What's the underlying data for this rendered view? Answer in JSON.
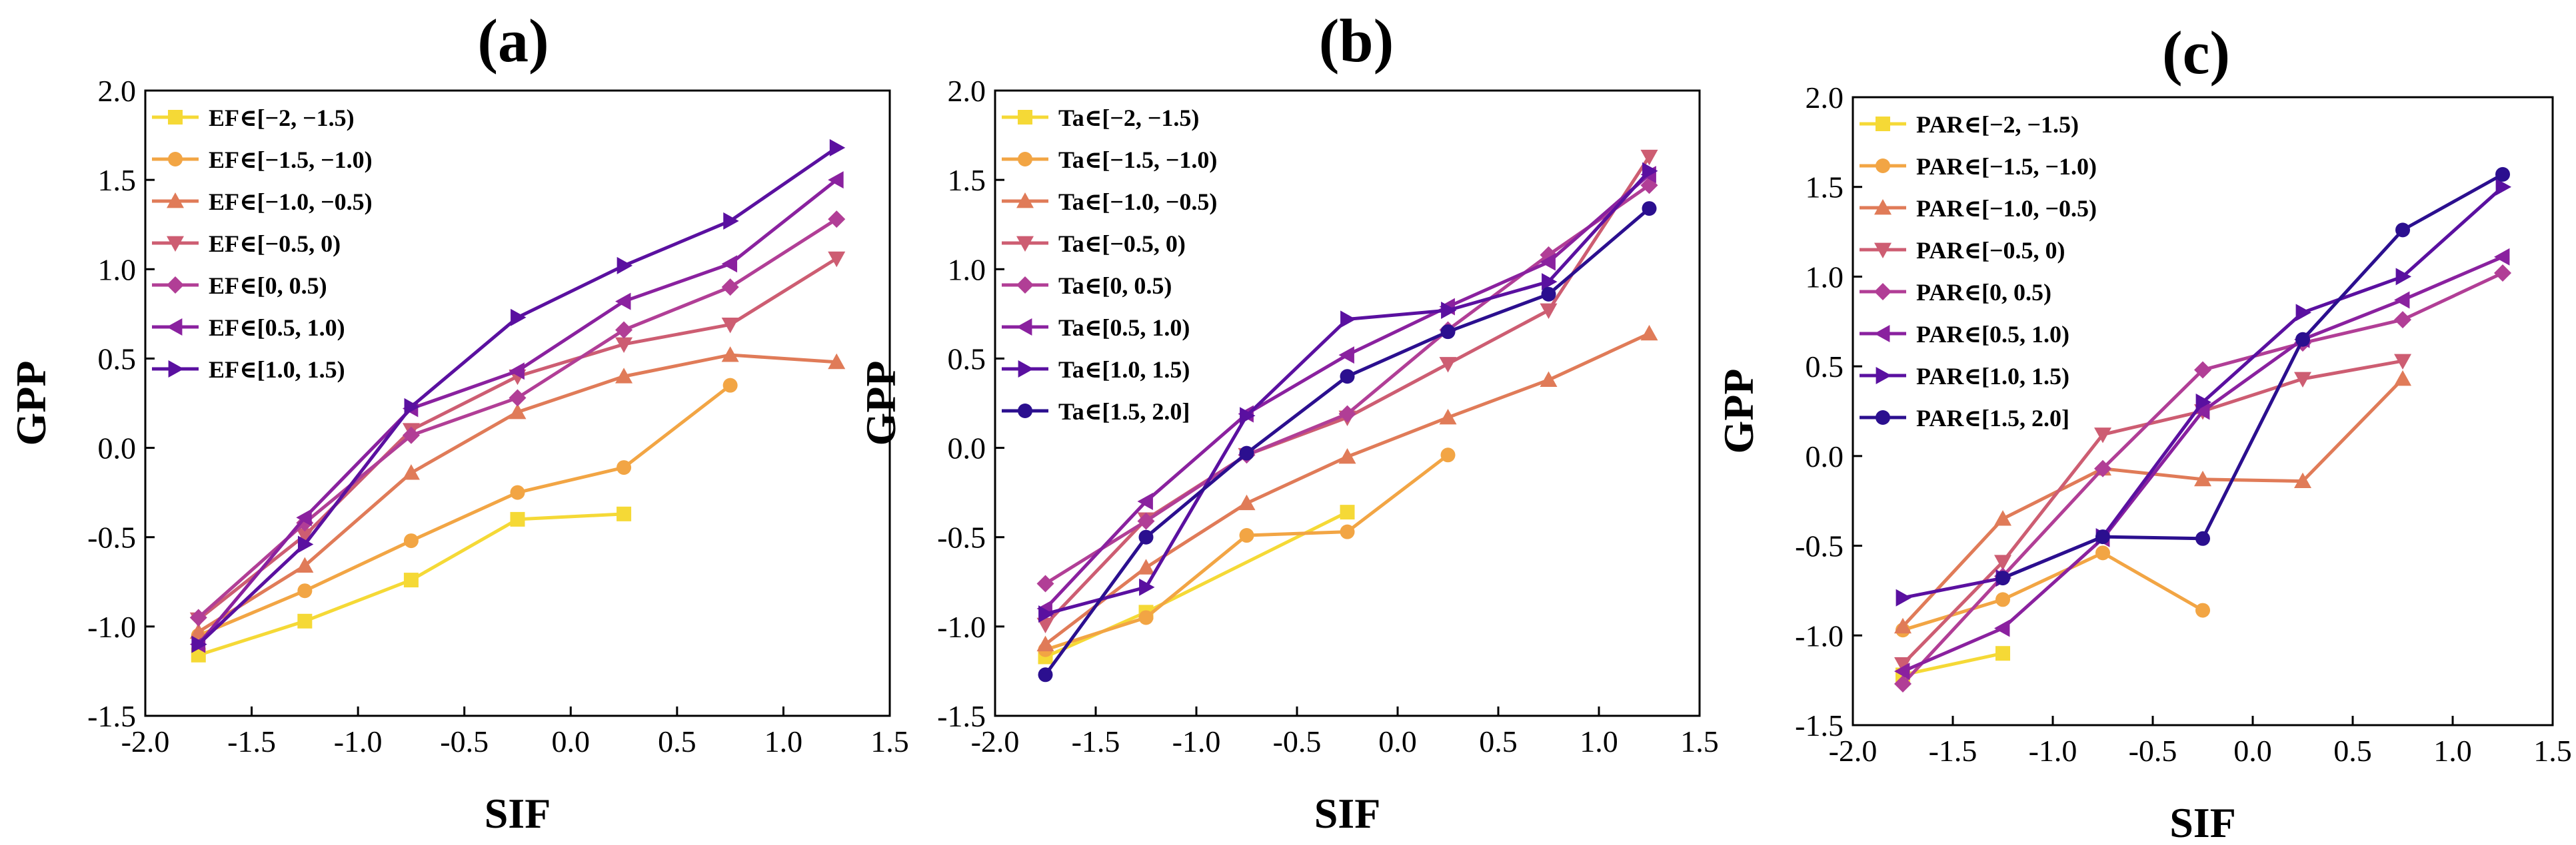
{
  "colors": {
    "s1": "#F5D936",
    "s2": "#F2A544",
    "s3": "#E07B58",
    "s4": "#CD5D72",
    "s5": "#B13E96",
    "s6": "#8A219F",
    "s7": "#5A10A0",
    "s8": "#2B0F8F"
  },
  "chart_data": [
    {
      "type": "line",
      "panel_label": "(a)",
      "xlabel": "SIF",
      "ylabel": "GPP",
      "xlim": [
        -2.0,
        1.5
      ],
      "ylim": [
        -1.5,
        2.0
      ],
      "xticks": [
        "-2.0",
        "-1.5",
        "-1.0",
        "-0.5",
        "0.0",
        "0.5",
        "1.0",
        "1.5"
      ],
      "yticks": [
        "-1.5",
        "-1.0",
        "-0.5",
        "0.0",
        "0.5",
        "1.0",
        "1.5",
        "2.0"
      ],
      "x": [
        -1.75,
        -1.25,
        -0.75,
        -0.25,
        0.25,
        0.75,
        1.25
      ],
      "legend_position": "top-left",
      "series": [
        {
          "name": "EF∈[−2, −1.5)",
          "color": "s1",
          "marker": "square",
          "values": [
            -1.16,
            -0.97,
            -0.74,
            -0.4,
            -0.37,
            null,
            null
          ]
        },
        {
          "name": "EF∈[−1.5, −1.0)",
          "color": "s2",
          "marker": "circle",
          "values": [
            -1.05,
            -0.8,
            -0.52,
            -0.25,
            -0.11,
            0.35,
            null
          ]
        },
        {
          "name": "EF∈[−1.0, −0.5)",
          "color": "s3",
          "marker": "triangle-up",
          "values": [
            -1.03,
            -0.66,
            -0.14,
            0.2,
            0.4,
            0.52,
            0.48
          ]
        },
        {
          "name": "EF∈[−0.5, 0)",
          "color": "s4",
          "marker": "triangle-down",
          "values": [
            -0.96,
            -0.49,
            0.1,
            0.4,
            0.58,
            0.69,
            1.06
          ]
        },
        {
          "name": "EF∈[0, 0.5)",
          "color": "s5",
          "marker": "diamond",
          "values": [
            -0.95,
            -0.42,
            0.07,
            0.28,
            0.66,
            0.9,
            1.28
          ]
        },
        {
          "name": "EF∈[0.5, 1.0)",
          "color": "s6",
          "marker": "triangle-left",
          "values": [
            -1.1,
            -0.39,
            0.22,
            0.43,
            0.82,
            1.03,
            1.5
          ]
        },
        {
          "name": "EF∈[1.0, 1.5)",
          "color": "s7",
          "marker": "triangle-right",
          "values": [
            -1.1,
            -0.54,
            0.23,
            0.73,
            1.02,
            1.27,
            1.68
          ]
        }
      ]
    },
    {
      "type": "line",
      "panel_label": "(b)",
      "xlabel": "SIF",
      "ylabel": "GPP",
      "xlim": [
        -2.0,
        1.5
      ],
      "ylim": [
        -1.5,
        2.0
      ],
      "xticks": [
        "-2.0",
        "-1.5",
        "-1.0",
        "-0.5",
        "0.0",
        "0.5",
        "1.0",
        "1.5"
      ],
      "yticks": [
        "-1.5",
        "-1.0",
        "-0.5",
        "0.0",
        "0.5",
        "1.0",
        "1.5",
        "2.0"
      ],
      "x": [
        -1.75,
        -1.25,
        -0.75,
        -0.25,
        0.25,
        0.75,
        1.25
      ],
      "legend_position": "top-left",
      "series": [
        {
          "name": "Ta∈[−2, −1.5)",
          "color": "s1",
          "marker": "square",
          "values": [
            -1.17,
            -0.92,
            null,
            -0.36,
            null,
            null,
            null
          ]
        },
        {
          "name": "Ta∈[−1.5, −1.0)",
          "color": "s2",
          "marker": "circle",
          "values": [
            -1.13,
            -0.95,
            -0.49,
            -0.47,
            -0.04,
            null,
            null
          ]
        },
        {
          "name": "Ta∈[−1.0, −0.5)",
          "color": "s3",
          "marker": "triangle-up",
          "values": [
            -1.1,
            -0.67,
            -0.31,
            -0.05,
            0.17,
            0.38,
            0.64
          ]
        },
        {
          "name": "Ta∈[−0.5, 0)",
          "color": "s4",
          "marker": "triangle-down",
          "values": [
            -0.99,
            -0.4,
            -0.04,
            0.17,
            0.47,
            0.77,
            1.63
          ]
        },
        {
          "name": "Ta∈[0, 0.5)",
          "color": "s5",
          "marker": "diamond",
          "values": [
            -0.76,
            -0.41,
            -0.04,
            0.19,
            0.66,
            1.08,
            1.47
          ]
        },
        {
          "name": "Ta∈[0.5, 1.0)",
          "color": "s6",
          "marker": "triangle-left",
          "values": [
            -0.9,
            -0.3,
            0.19,
            0.52,
            0.79,
            1.04,
            1.53
          ]
        },
        {
          "name": "Ta∈[1.0, 1.5)",
          "color": "s7",
          "marker": "triangle-right",
          "values": [
            -0.93,
            -0.78,
            0.18,
            0.72,
            0.77,
            0.93,
            1.55
          ]
        },
        {
          "name": "Ta∈[1.5, 2.0]",
          "color": "s8",
          "marker": "circle",
          "values": [
            -1.27,
            -0.5,
            -0.03,
            0.4,
            0.65,
            0.86,
            1.34
          ]
        }
      ]
    },
    {
      "type": "line",
      "panel_label": "(c)",
      "xlabel": "SIF",
      "ylabel": "GPP",
      "xlim": [
        -2.0,
        1.5
      ],
      "ylim": [
        -1.5,
        2.0
      ],
      "xticks": [
        "-2.0",
        "-1.5",
        "-1.0",
        "-0.5",
        "0.0",
        "0.5",
        "1.0",
        "1.5"
      ],
      "yticks": [
        "-1.5",
        "-1.0",
        "-0.5",
        "0.0",
        "0.5",
        "1.0",
        "1.5",
        "2.0"
      ],
      "x": [
        -1.75,
        -1.25,
        -0.75,
        -0.25,
        0.25,
        0.75,
        1.25
      ],
      "legend_position": "top-left",
      "series": [
        {
          "name": "PAR∈[−2, −1.5)",
          "color": "s1",
          "marker": "square",
          "values": [
            -1.22,
            -1.1,
            null,
            null,
            null,
            null,
            null
          ]
        },
        {
          "name": "PAR∈[−1.5, −1.0)",
          "color": "s2",
          "marker": "circle",
          "values": [
            -0.97,
            -0.8,
            -0.54,
            -0.86,
            null,
            null,
            null
          ]
        },
        {
          "name": "PAR∈[−1.0, −0.5)",
          "color": "s3",
          "marker": "triangle-up",
          "values": [
            -0.95,
            -0.35,
            -0.07,
            -0.13,
            -0.14,
            0.43,
            null
          ]
        },
        {
          "name": "PAR∈[−0.5, 0)",
          "color": "s4",
          "marker": "triangle-down",
          "values": [
            -1.16,
            -0.59,
            0.12,
            0.25,
            0.43,
            0.53,
            null
          ]
        },
        {
          "name": "PAR∈[0, 0.5)",
          "color": "s5",
          "marker": "diamond",
          "values": [
            -1.27,
            -0.67,
            -0.07,
            0.48,
            0.63,
            0.76,
            1.02
          ]
        },
        {
          "name": "PAR∈[0.5, 1.0)",
          "color": "s6",
          "marker": "triangle-left",
          "values": [
            -1.2,
            -0.96,
            -0.46,
            0.25,
            0.65,
            0.87,
            1.11
          ]
        },
        {
          "name": "PAR∈[1.0, 1.5)",
          "color": "s7",
          "marker": "triangle-right",
          "values": [
            -0.79,
            -0.68,
            -0.45,
            0.3,
            0.8,
            1.0,
            1.5
          ]
        },
        {
          "name": "PAR∈[1.5, 2.0]",
          "color": "s8",
          "marker": "circle",
          "values": [
            null,
            -0.68,
            -0.45,
            -0.46,
            0.65,
            1.26,
            1.57
          ]
        }
      ]
    }
  ]
}
